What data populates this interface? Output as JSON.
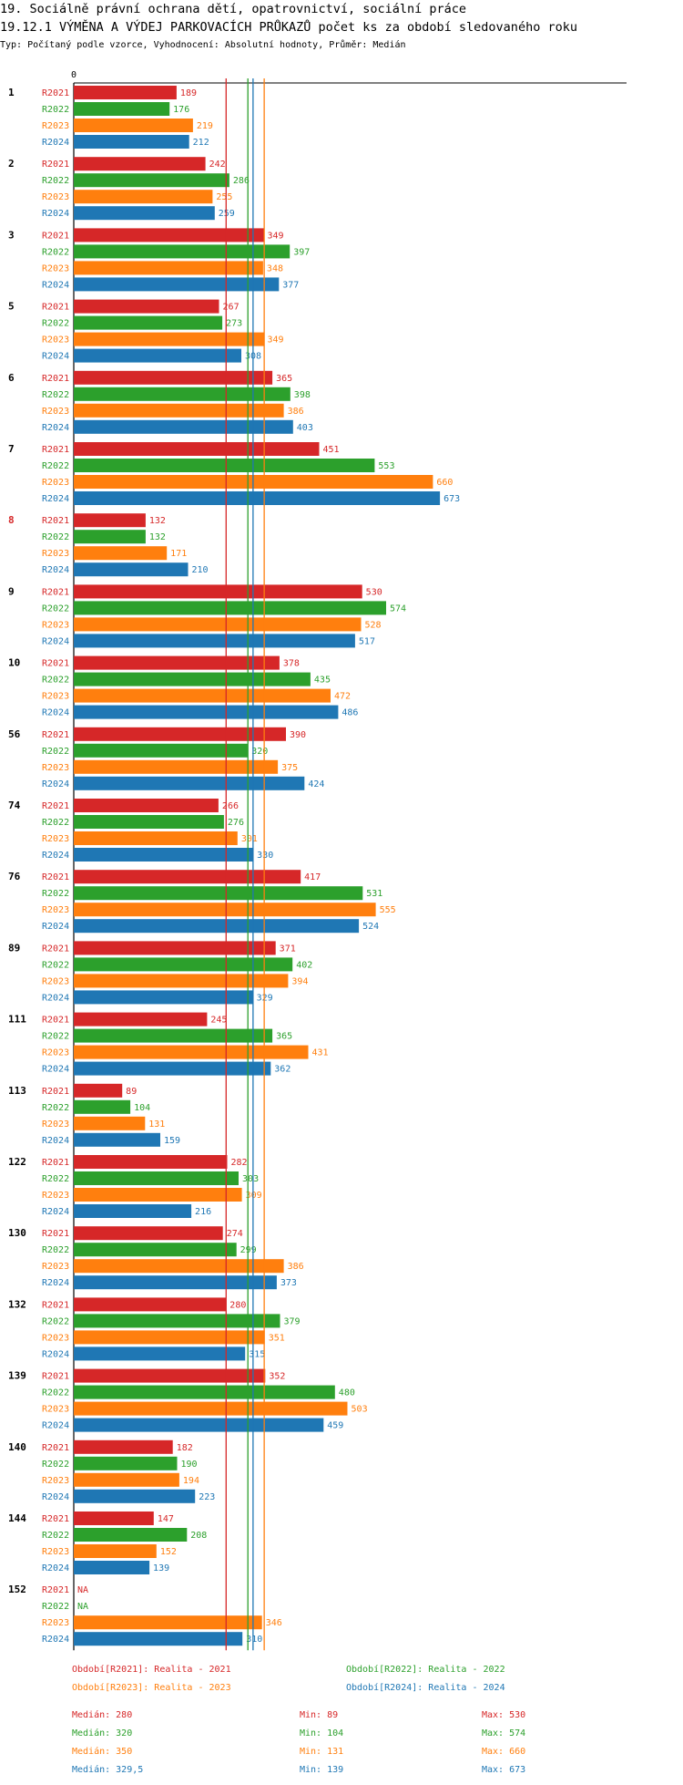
{
  "header": {
    "title": "19. Sociálně právní ochrana dětí, opatrovnictví, sociální práce",
    "chart_title": "19.12.1 VÝMĚNA A VÝDEJ PARKOVACÍCH PRŮKAZŮ počet ks za období sledovaného roku",
    "subtitle": "Typ: Počítaný podle vzorce, Vyhodnocení: Absolutní hodnoty, Průměr: Medián"
  },
  "chart_data": {
    "type": "bar",
    "orientation": "horizontal",
    "axis_zero_label": "0",
    "series_labels": [
      "R2021",
      "R2022",
      "R2023",
      "R2024"
    ],
    "colors": [
      "#d62728",
      "#2ca02c",
      "#ff7f0e",
      "#1f77b4"
    ],
    "categories": [
      "1",
      "2",
      "3",
      "5",
      "6",
      "7",
      "8",
      "9",
      "10",
      "56",
      "74",
      "76",
      "89",
      "111",
      "113",
      "122",
      "130",
      "132",
      "139",
      "140",
      "144",
      "152"
    ],
    "highlight_category": "8",
    "highlight_color": "#d62728",
    "values": [
      [
        189,
        176,
        219,
        212
      ],
      [
        242,
        286,
        255,
        259
      ],
      [
        349,
        397,
        348,
        377
      ],
      [
        267,
        273,
        349,
        308
      ],
      [
        365,
        398,
        386,
        403
      ],
      [
        451,
        553,
        660,
        673
      ],
      [
        132,
        132,
        171,
        210
      ],
      [
        530,
        574,
        528,
        517
      ],
      [
        378,
        435,
        472,
        486
      ],
      [
        390,
        320,
        375,
        424
      ],
      [
        266,
        276,
        301,
        330
      ],
      [
        417,
        531,
        555,
        524
      ],
      [
        371,
        402,
        394,
        329
      ],
      [
        245,
        365,
        431,
        362
      ],
      [
        89,
        104,
        131,
        159
      ],
      [
        282,
        303,
        309,
        216
      ],
      [
        274,
        299,
        386,
        373
      ],
      [
        280,
        379,
        351,
        315
      ],
      [
        352,
        480,
        503,
        459
      ],
      [
        182,
        190,
        194,
        223
      ],
      [
        147,
        208,
        152,
        139
      ],
      [
        null,
        null,
        346,
        310
      ]
    ],
    "na_label": "NA",
    "medians": [
      280,
      320,
      350,
      329.5
    ],
    "legend": [
      "Období[R2021]: Realita - 2021",
      "Období[R2022]: Realita - 2022",
      "Období[R2023]: Realita - 2023",
      "Období[R2024]: Realita - 2024"
    ],
    "stats": [
      {
        "median": "Medián: 280",
        "min": "Min: 89",
        "max": "Max: 530"
      },
      {
        "median": "Medián: 320",
        "min": "Min: 104",
        "max": "Max: 574"
      },
      {
        "median": "Medián: 350",
        "min": "Min: 131",
        "max": "Max: 660"
      },
      {
        "median": "Medián: 329,5",
        "min": "Min: 139",
        "max": "Max: 673"
      }
    ]
  }
}
